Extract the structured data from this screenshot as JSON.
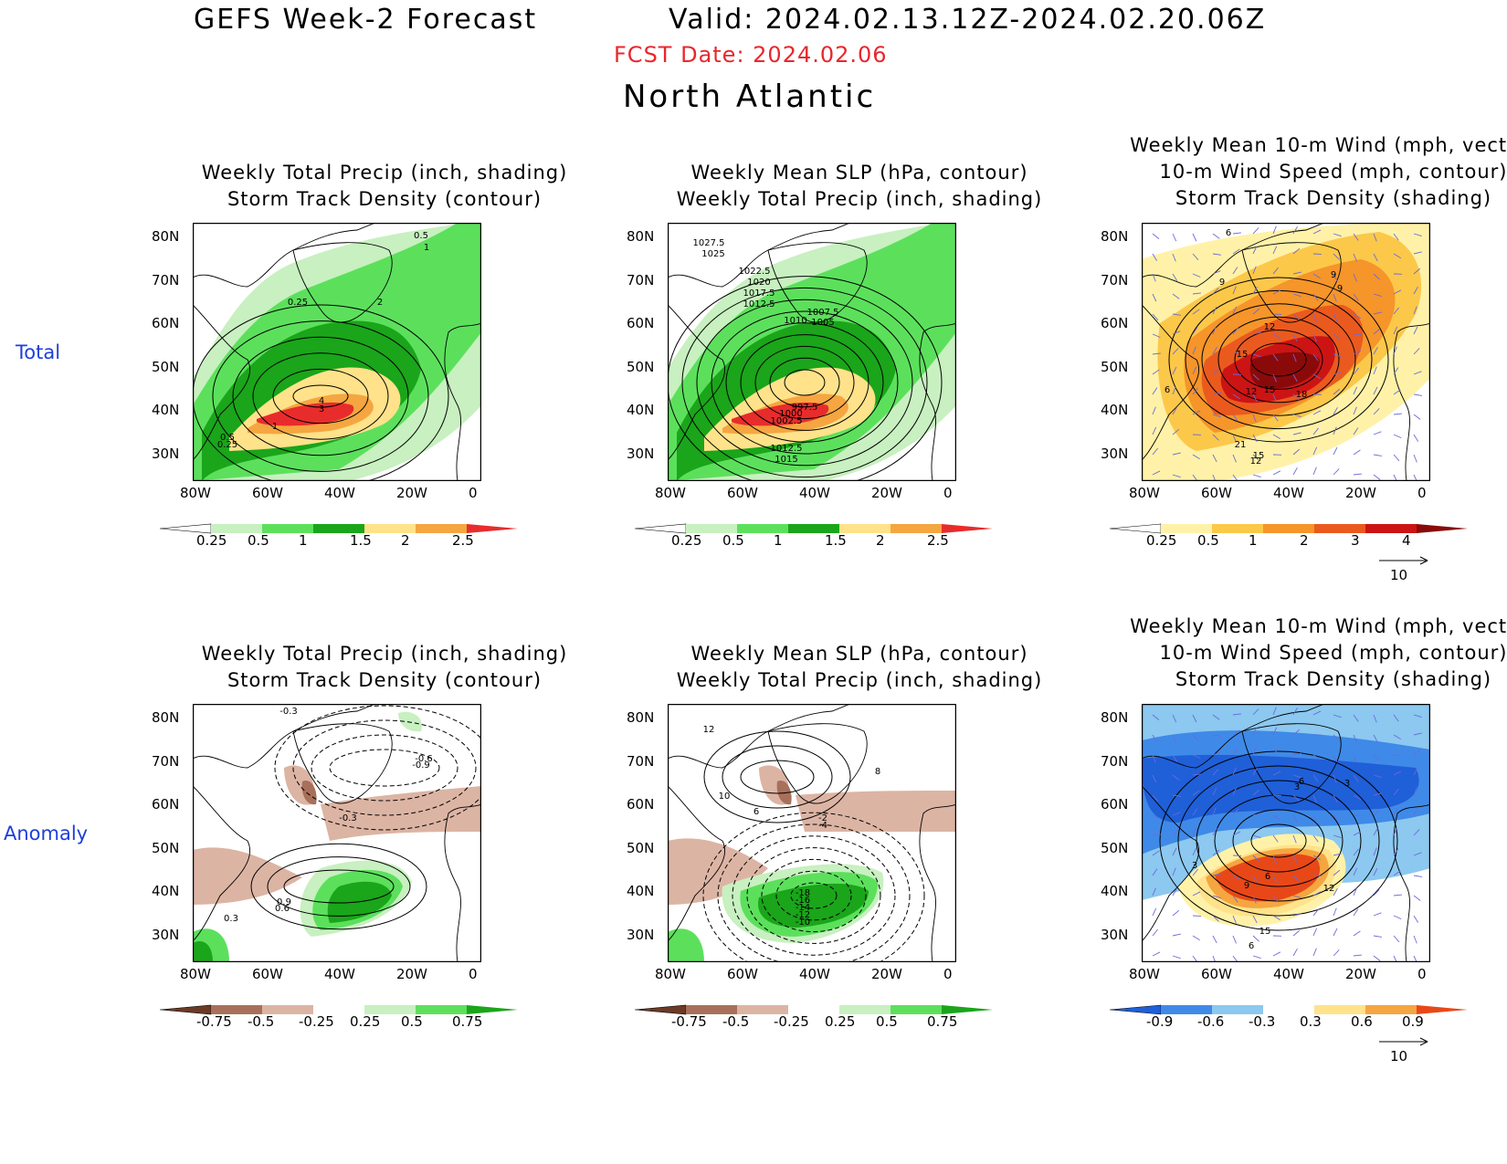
{
  "header": {
    "line1_left": "GEFS Week-2 Forecast",
    "line1_right": "Valid: 2024.02.13.12Z-2024.02.20.06Z",
    "fcst_date": "FCST Date: 2024.02.06",
    "region": "North Atlantic",
    "fcst_color": "#e8272c"
  },
  "rows": {
    "total": "Total",
    "anomaly": "Anomaly"
  },
  "axes": {
    "lat_ticks": [
      "80N",
      "70N",
      "60N",
      "50N",
      "40N",
      "30N"
    ],
    "lon_ticks": [
      "80W",
      "60W",
      "40W",
      "20W",
      "0"
    ]
  },
  "panels": [
    {
      "id": "total-precip-storm",
      "title": "Weekly Total Precip (inch, shading)\nStorm Track Density (contour)",
      "colorbar": {
        "labels": [
          "0.25",
          "0.5",
          "1",
          "1.5",
          "2",
          "2.5"
        ],
        "colors": [
          "#ffffff",
          "#c8f0c0",
          "#5ce05c",
          "#1aa51a",
          "#ffe28a",
          "#f5a640",
          "#e82c2c"
        ]
      },
      "contour_labels": [
        "0.5",
        "1",
        "2",
        "0.25",
        "4",
        "3",
        "1",
        "0.5",
        "0.25"
      ]
    },
    {
      "id": "total-slp-precip",
      "title": "Weekly Mean SLP (hPa, contour)\nWeekly Total Precip (inch, shading)",
      "colorbar": {
        "labels": [
          "0.25",
          "0.5",
          "1",
          "1.5",
          "2",
          "2.5"
        ],
        "colors": [
          "#ffffff",
          "#c8f0c0",
          "#5ce05c",
          "#1aa51a",
          "#ffe28a",
          "#f5a640",
          "#e82c2c"
        ]
      },
      "contour_labels": [
        "1027.5",
        "1025",
        "1022.5",
        "1020",
        "1017.5",
        "1012.5",
        "1010",
        "1007.5",
        "1005",
        "997.5",
        "1000",
        "1002.5",
        "1012.5",
        "1015"
      ]
    },
    {
      "id": "total-wind-storm",
      "title": "Weekly Mean 10-m Wind (mph, vector)\n10-m Wind Speed (mph, contour)\nStorm Track Density (shading)",
      "colorbar": {
        "labels": [
          "0.25",
          "0.5",
          "1",
          "2",
          "3",
          "4"
        ],
        "colors": [
          "#ffffff",
          "#fff2a8",
          "#fcc84a",
          "#f5952a",
          "#ea5a1e",
          "#cc1414",
          "#8a0a0a"
        ]
      },
      "contour_labels": [
        "6",
        "9",
        "9",
        "9",
        "12",
        "15",
        "6",
        "12",
        "15",
        "18",
        "21",
        "15",
        "12"
      ],
      "vector_ref": "10"
    },
    {
      "id": "anom-precip-storm",
      "title": "Weekly Total Precip (inch, shading)\nStorm Track Density (contour)",
      "colorbar": {
        "labels": [
          "-0.75",
          "-0.5",
          "-0.25",
          "0.25",
          "0.5",
          "0.75"
        ],
        "colors": [
          "#6b3a26",
          "#a8705a",
          "#dcb4a4",
          "#ffffff",
          "#c8f0c0",
          "#5ce05c",
          "#1aa51a"
        ]
      },
      "contour_labels": [
        "-0.3",
        "-0.6",
        "-0.9",
        "-0.3",
        "0.9",
        "0.6",
        "0.3"
      ]
    },
    {
      "id": "anom-slp-precip",
      "title": "Weekly Mean SLP (hPa, contour)\nWeekly Total Precip (inch, shading)",
      "colorbar": {
        "labels": [
          "-0.75",
          "-0.5",
          "-0.25",
          "0.25",
          "0.5",
          "0.75"
        ],
        "colors": [
          "#6b3a26",
          "#a8705a",
          "#dcb4a4",
          "#ffffff",
          "#c8f0c0",
          "#5ce05c",
          "#1aa51a"
        ]
      },
      "contour_labels": [
        "12",
        "8",
        "10",
        "6",
        "-2",
        "-4",
        "-18",
        "-16",
        "-14",
        "-12",
        "-10"
      ]
    },
    {
      "id": "anom-wind-storm",
      "title": "Weekly Mean 10-m Wind (mph, vector)\n10-m Wind Speed (mph, contour)\nStorm Track Density (shading)",
      "colorbar": {
        "labels": [
          "-0.9",
          "-0.6",
          "-0.3",
          "0.3",
          "0.6",
          "0.9"
        ],
        "colors": [
          "#1f5fd8",
          "#3f8ae8",
          "#8cc8f0",
          "#ffffff",
          "#ffe28a",
          "#f5a640",
          "#e84818"
        ]
      },
      "contour_labels": [
        "3",
        "6",
        "3",
        "3",
        "6",
        "9",
        "12",
        "15",
        "6"
      ],
      "vector_ref": "10"
    }
  ]
}
